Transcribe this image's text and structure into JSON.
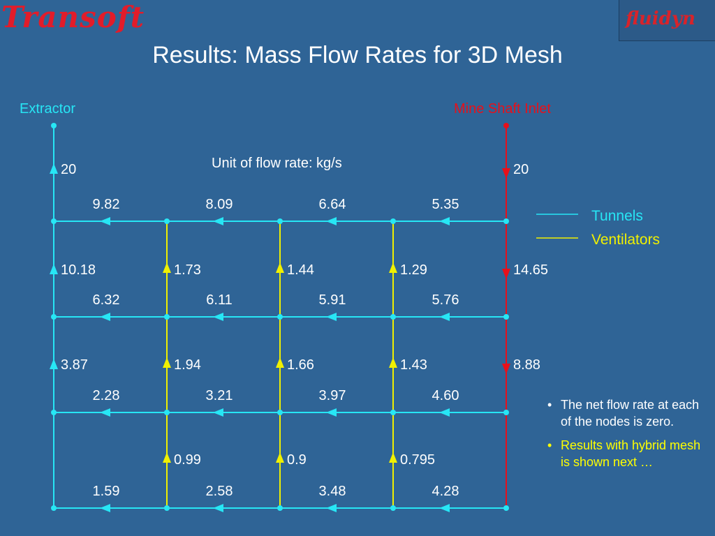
{
  "header": {
    "logo_left": "Transoft",
    "logo_right": "fluidyn",
    "title": "Results: Mass Flow Rates for 3D Mesh"
  },
  "labels": {
    "extractor": "Extractor",
    "inlet": "Mine Shaft Inlet",
    "unit": "Unit of flow rate: kg/s"
  },
  "legend": [
    {
      "label": "Tunnels",
      "color": "#27e6f5"
    },
    {
      "label": "Ventilators",
      "color": "#f0f000"
    }
  ],
  "colors": {
    "tunnel": "#27e6f5",
    "ventilator": "#f0f000",
    "inlet": "#e8101a",
    "node": "#27e6f5"
  },
  "diagram": {
    "horizontal_flows": [
      [
        "9.82",
        "8.09",
        "6.64",
        "5.35"
      ],
      [
        "6.32",
        "6.11",
        "5.91",
        "5.76"
      ],
      [
        "2.28",
        "3.21",
        "3.97",
        "4.60"
      ],
      [
        "1.59",
        "2.58",
        "3.48",
        "4.28"
      ]
    ],
    "vertical_flows": [
      [
        "20",
        "",
        "",
        "",
        "20"
      ],
      [
        "10.18",
        "1.73",
        "1.44",
        "1.29",
        "14.65"
      ],
      [
        "3.87",
        "1.94",
        "1.66",
        "1.43",
        "8.88"
      ],
      [
        "",
        "0.99",
        "0.9",
        "0.795",
        ""
      ]
    ]
  },
  "notes": [
    {
      "text": "The net flow rate at each of the nodes is zero.",
      "style": "white"
    },
    {
      "text": "Results with hybrid mesh is shown next …",
      "style": "yellow"
    }
  ]
}
